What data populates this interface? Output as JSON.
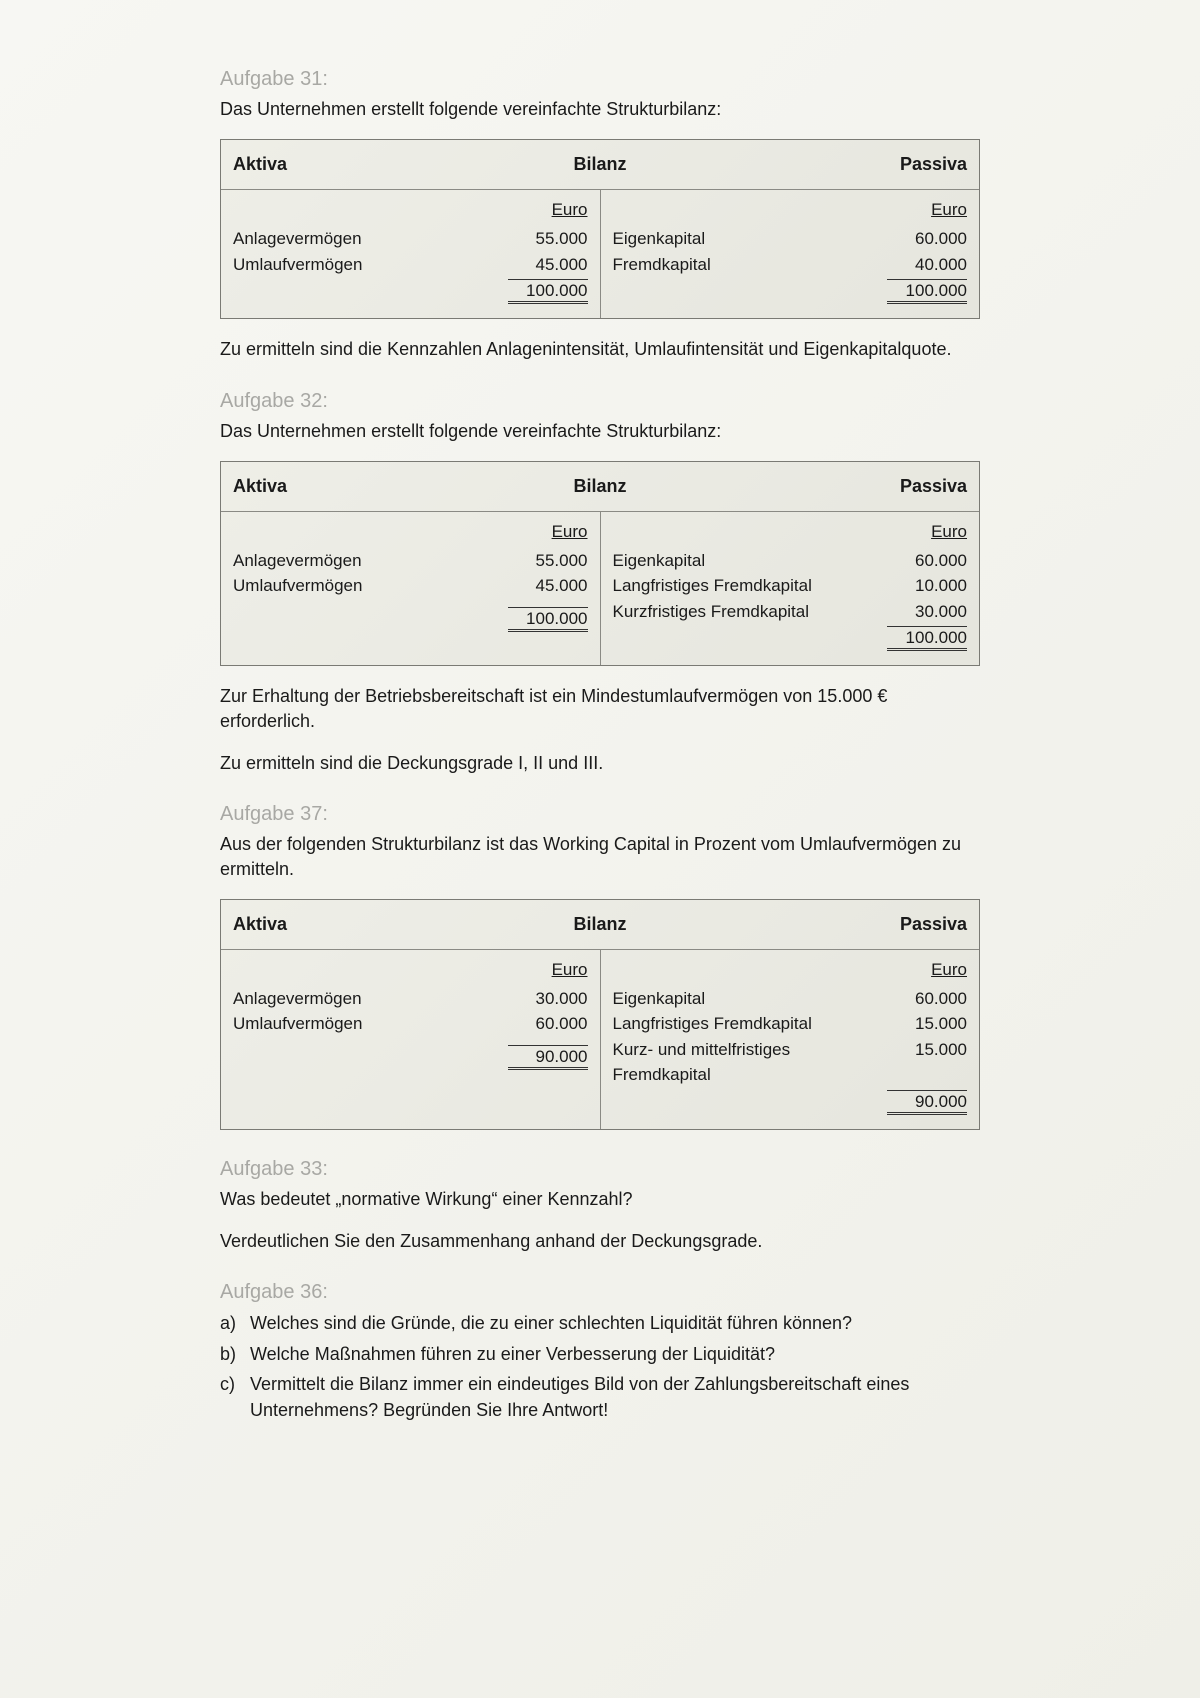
{
  "tasks": [
    {
      "heading": "Aufgabe 31:",
      "intro": "Das Unternehmen erstellt folgende vereinfachte Strukturbilanz:",
      "bilanz": {
        "head_left": "Aktiva",
        "head_center": "Bilanz",
        "head_right": "Passiva",
        "unit": "Euro",
        "aktiva_rows": [
          {
            "label": "Anlagevermögen",
            "value": "55.000"
          },
          {
            "label": "Umlaufvermögen",
            "value": "45.000"
          }
        ],
        "aktiva_sum": "100.000",
        "passiva_rows": [
          {
            "label": "Eigenkapital",
            "value": "60.000"
          },
          {
            "label": "Fremdkapital",
            "value": "40.000"
          }
        ],
        "passiva_sum": "100.000"
      },
      "after": [
        "Zu ermitteln sind die Kennzahlen Anlagenintensität, Umlaufintensität und Eigenkapitalquote."
      ]
    },
    {
      "heading": "Aufgabe 32:",
      "intro": "Das Unternehmen erstellt folgende vereinfachte Strukturbilanz:",
      "bilanz": {
        "head_left": "Aktiva",
        "head_center": "Bilanz",
        "head_right": "Passiva",
        "unit": "Euro",
        "aktiva_rows": [
          {
            "label": "Anlagevermögen",
            "value": "55.000"
          },
          {
            "label": "Umlaufvermögen",
            "value": "45.000"
          }
        ],
        "aktiva_sum": "100.000",
        "passiva_rows": [
          {
            "label": "Eigenkapital",
            "value": "60.000"
          },
          {
            "label": "Langfristiges Fremdkapital",
            "value": "10.000"
          },
          {
            "label": "Kurzfristiges Fremdkapital",
            "value": "30.000"
          }
        ],
        "passiva_sum": "100.000"
      },
      "after": [
        "Zur Erhaltung der Betriebsbereitschaft ist ein Mindestumlaufvermögen von 15.000 € erforderlich.",
        "Zu ermitteln sind die Deckungsgrade I, II und III."
      ]
    },
    {
      "heading": "Aufgabe 37:",
      "intro": "Aus der folgenden Strukturbilanz ist das Working Capital in Prozent vom Umlaufvermögen zu ermitteln.",
      "bilanz": {
        "head_left": "Aktiva",
        "head_center": "Bilanz",
        "head_right": "Passiva",
        "unit": "Euro",
        "aktiva_rows": [
          {
            "label": "Anlagevermögen",
            "value": "30.000"
          },
          {
            "label": "Umlaufvermögen",
            "value": "60.000"
          }
        ],
        "aktiva_sum": "90.000",
        "passiva_rows": [
          {
            "label": "Eigenkapital",
            "value": "60.000"
          },
          {
            "label": "Langfristiges Fremdkapital",
            "value": "15.000"
          },
          {
            "label": "Kurz- und mittelfristiges Fremdkapital",
            "value": "15.000"
          }
        ],
        "passiva_sum": "90.000"
      },
      "after": []
    },
    {
      "heading": "Aufgabe 33:",
      "paras": [
        "Was bedeutet „normative Wirkung“ einer Kennzahl?",
        "Verdeutlichen Sie den Zusammenhang anhand der Deckungsgrade."
      ]
    },
    {
      "heading": "Aufgabe 36:",
      "list": [
        {
          "marker": "a)",
          "text": "Welches sind die Gründe, die zu einer schlechten Liquidität führen können?"
        },
        {
          "marker": "b)",
          "text": "Welche Maßnahmen führen zu einer Verbesserung der Liquidität?"
        },
        {
          "marker": "c)",
          "text": "Vermittelt die Bilanz immer ein eindeutiges Bild von der Zahlungsbereitschaft eines Unternehmens? Begründen Sie Ihre Antwort!"
        }
      ]
    }
  ],
  "style": {
    "heading_color": "#a8a8a4",
    "border_color": "#7a7a74",
    "bg_page": "#f4f4ef",
    "font_size_body": 18,
    "font_size_heading": 20
  }
}
